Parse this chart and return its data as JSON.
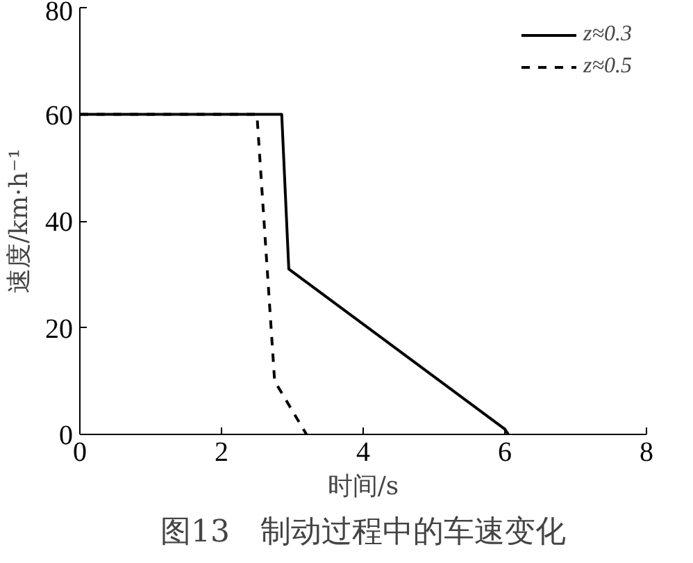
{
  "chart_data": {
    "type": "line",
    "xlabel": "时间/s",
    "ylabel": "速度/km·h⁻¹",
    "xlim": [
      0,
      8
    ],
    "ylim": [
      0,
      80
    ],
    "xticks": [
      0,
      2,
      4,
      6,
      8
    ],
    "yticks": [
      0,
      20,
      40,
      60,
      80
    ],
    "grid": false,
    "legend": "top right",
    "marker": "none",
    "series": [
      {
        "name": "z≈0.3",
        "color": "#000000",
        "line_style": "solid",
        "x": [
          0,
          2.85,
          2.95,
          6.0,
          6.05
        ],
        "values": [
          60,
          60,
          31,
          1,
          0
        ]
      },
      {
        "name": "z≈0.5",
        "color": "#000000",
        "line_style": "dashed",
        "x": [
          0,
          2.5,
          2.75,
          3.2
        ],
        "values": [
          60,
          60,
          10,
          0
        ]
      }
    ],
    "annotations": [
      "图13　制动过程中的车速变化"
    ]
  }
}
